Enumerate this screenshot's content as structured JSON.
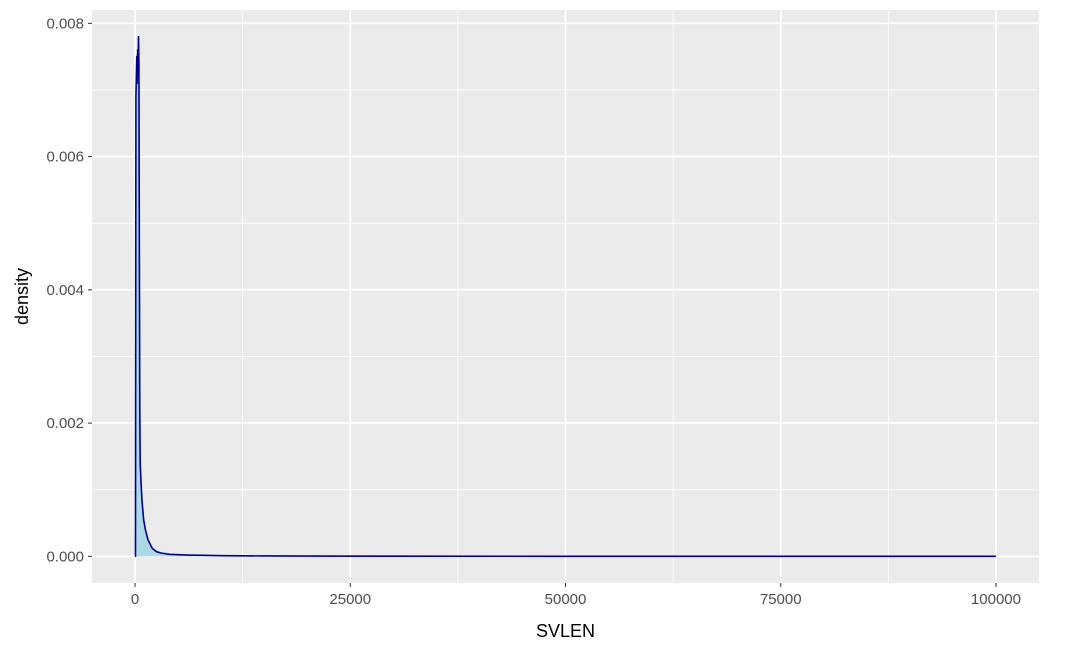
{
  "chart_data": {
    "type": "area",
    "title": "",
    "xlabel": "SVLEN",
    "ylabel": "density",
    "xlim": [
      -5000,
      105000
    ],
    "ylim": [
      -0.0004,
      0.0082
    ],
    "x_ticks": [
      0,
      25000,
      50000,
      75000,
      100000
    ],
    "x_tick_labels": [
      "0",
      "25000",
      "50000",
      "75000",
      "100000"
    ],
    "y_ticks": [
      0,
      0.002,
      0.004,
      0.006,
      0.008
    ],
    "y_tick_labels": [
      "0.000",
      "0.002",
      "0.004",
      "0.006",
      "0.008"
    ],
    "grid": true,
    "legend": "none",
    "series": [
      {
        "fill": "#add8e6",
        "line": "#00008b",
        "x": [
          0,
          50,
          100,
          150,
          200,
          250,
          300,
          350,
          400,
          450,
          500,
          550,
          600,
          700,
          800,
          900,
          1000,
          1200,
          1500,
          2000,
          2500,
          3000,
          4000,
          5000,
          6000,
          8000,
          10000,
          15000,
          20000,
          30000,
          50000,
          75000,
          100000
        ],
        "y": [
          0.0,
          0.0,
          0.0069,
          0.0072,
          0.0075,
          0.0071,
          0.0076,
          0.0073,
          0.0078,
          0.0074,
          0.0046,
          0.0022,
          0.0014,
          0.0011,
          0.00085,
          0.0007,
          0.00055,
          0.0004,
          0.00025,
          0.00012,
          7e-05,
          5e-05,
          3e-05,
          2.5e-05,
          2e-05,
          1.5e-05,
          1e-05,
          6e-06,
          4e-06,
          2e-06,
          1e-06,
          5e-07,
          0.0
        ]
      }
    ]
  }
}
